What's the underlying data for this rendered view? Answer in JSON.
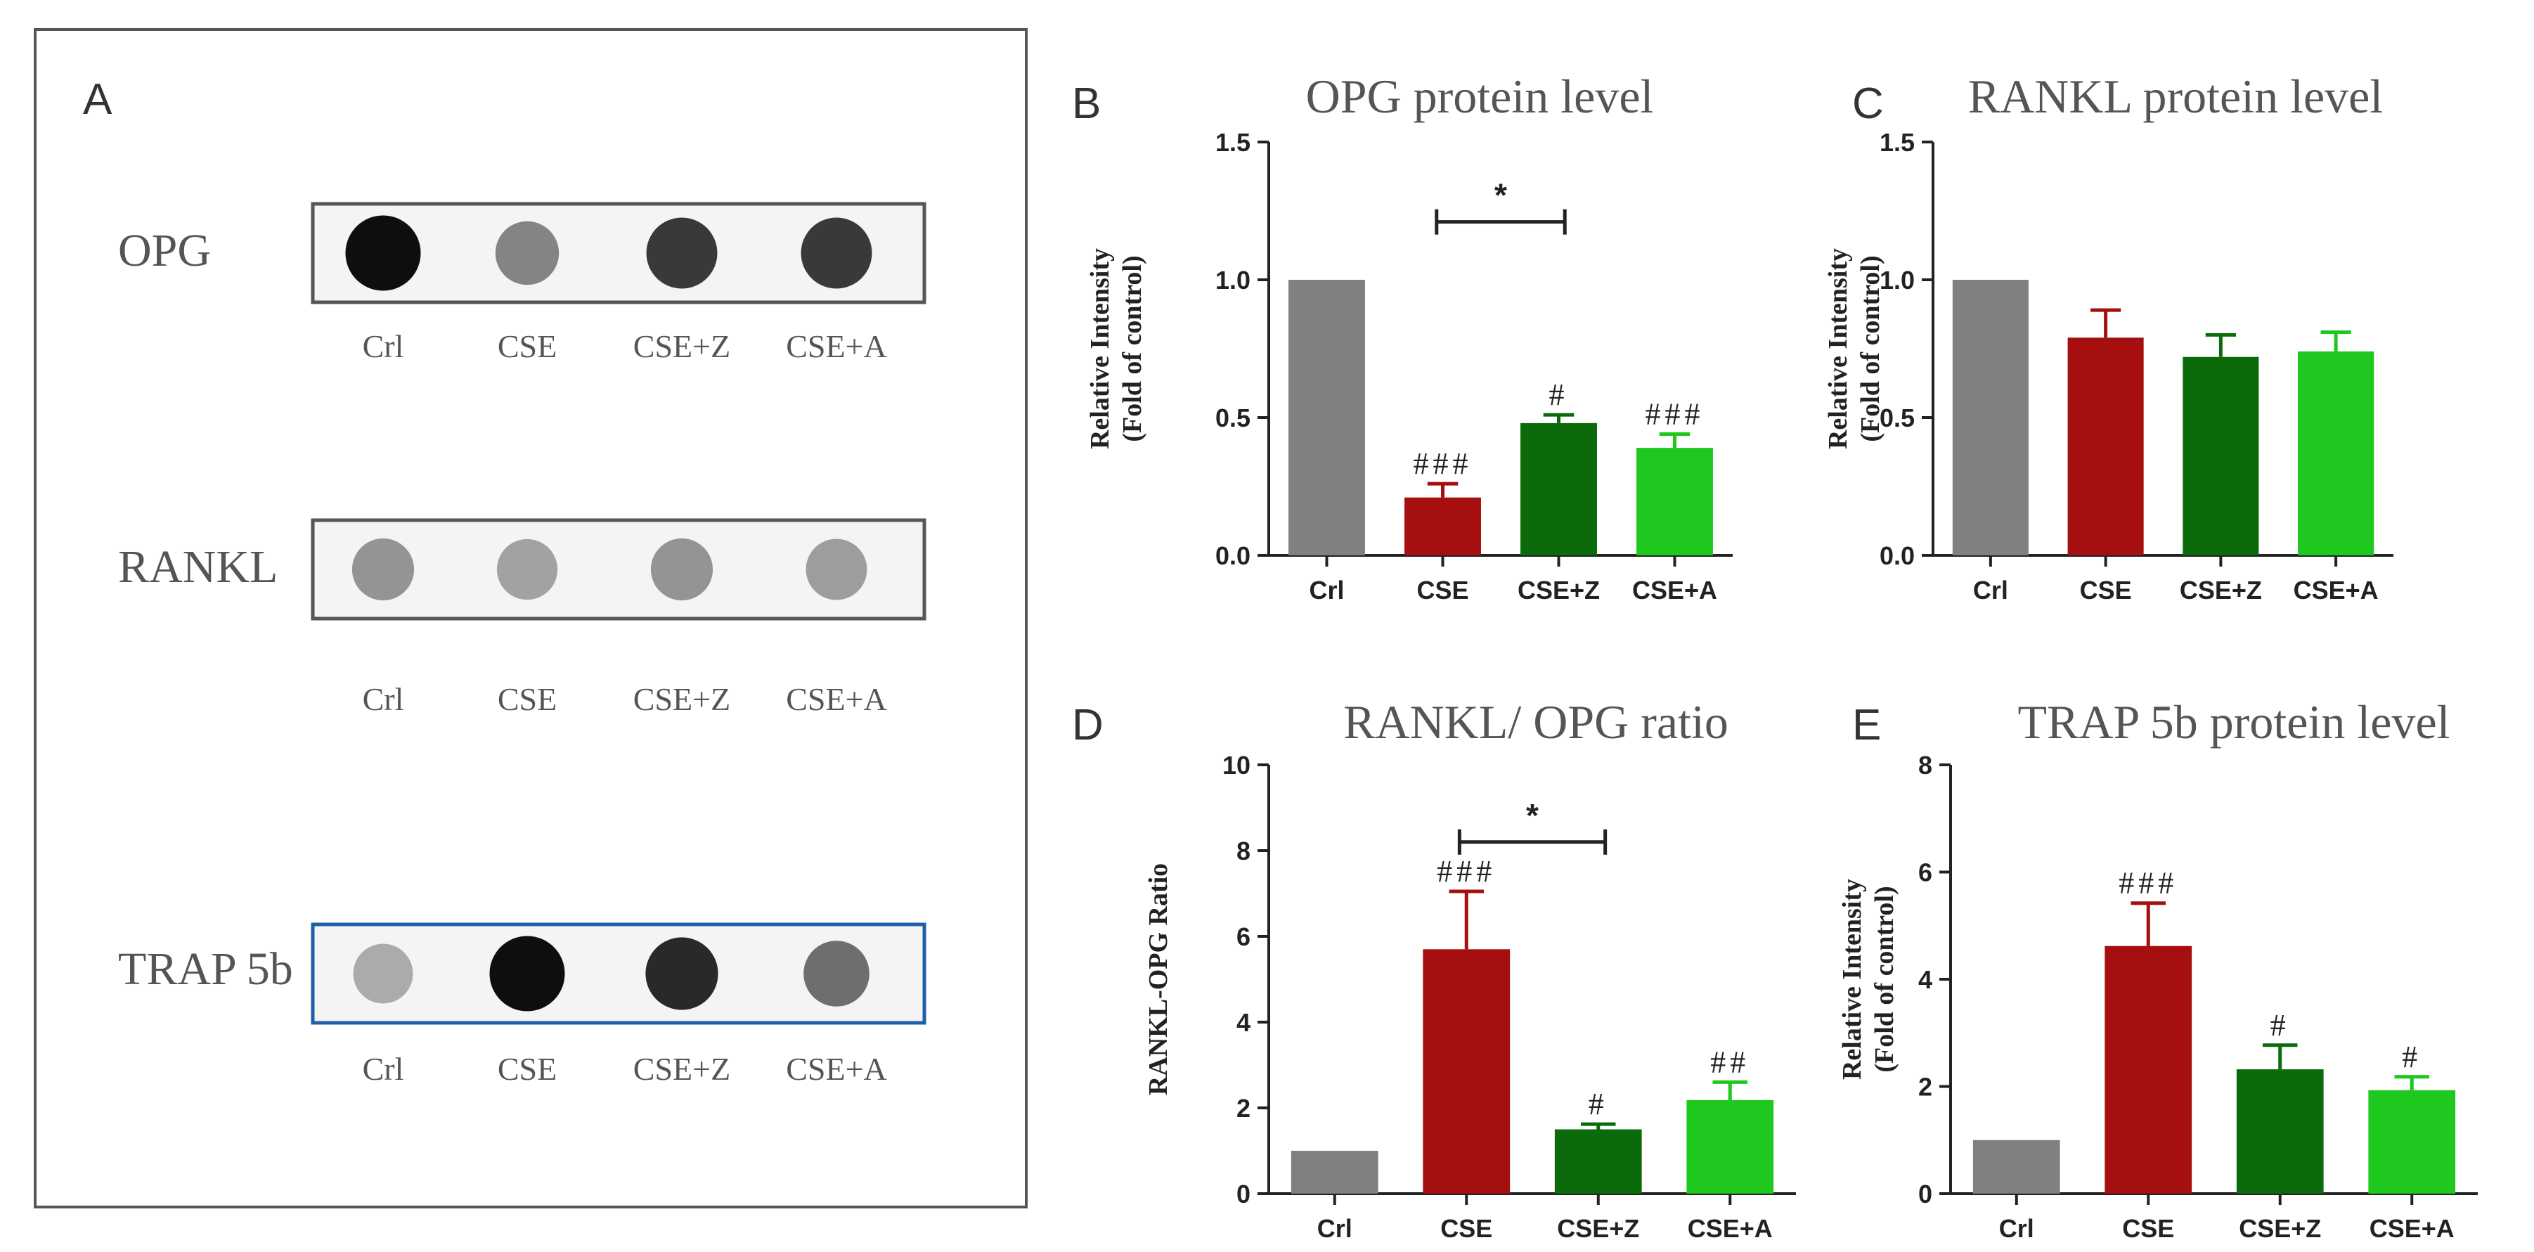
{
  "panel_a": {
    "letter": "A",
    "blots": [
      {
        "name": "OPG",
        "label": "OPG",
        "frame": "#555555",
        "spots": [
          0.97,
          0.45,
          0.78,
          0.78
        ]
      },
      {
        "name": "RANKL",
        "label": "RANKL",
        "frame": "#555555",
        "spots": [
          0.38,
          0.32,
          0.38,
          0.34
        ]
      },
      {
        "name": "TRAP 5b",
        "label": "TRAP 5b",
        "frame": "#1f5fa8",
        "spots": [
          0.28,
          0.97,
          0.85,
          0.55
        ]
      }
    ],
    "lane_labels": [
      "Crl",
      "CSE",
      "CSE+Z",
      "CSE+A"
    ]
  },
  "colors": {
    "Crl": "#808080",
    "CSE": "#a50f0f",
    "CSE+Z": "#0b6b0b",
    "CSE+A": "#1ec81e",
    "blot_frame": "#555555",
    "trap_frame": "#1f5fa8"
  },
  "chart_data": [
    {
      "id": "B",
      "letter": "B",
      "type": "bar",
      "title": "OPG protein level",
      "ylabel": [
        "Relative Intensity",
        "(Fold of control)"
      ],
      "categories": [
        "Crl",
        "CSE",
        "CSE+Z",
        "CSE+A"
      ],
      "values": [
        1.0,
        0.21,
        0.48,
        0.39
      ],
      "errors": [
        0,
        0.05,
        0.03,
        0.05
      ],
      "annotations": [
        "",
        "###",
        "#",
        "###"
      ],
      "ylim": [
        0,
        1.5
      ],
      "yticks": [
        0.0,
        0.5,
        1.0,
        1.5
      ],
      "tick_labels": [
        "0.0",
        "0.5",
        "1.0",
        "1.5"
      ],
      "comparison": {
        "from": 1,
        "to": 2,
        "y": 1.21,
        "label": "*"
      }
    },
    {
      "id": "C",
      "letter": "C",
      "type": "bar",
      "title": "RANKL protein level",
      "ylabel": [
        "Relative Intensity",
        "(Fold of control)"
      ],
      "categories": [
        "Crl",
        "CSE",
        "CSE+Z",
        "CSE+A"
      ],
      "values": [
        1.0,
        0.79,
        0.72,
        0.74
      ],
      "errors": [
        0,
        0.1,
        0.08,
        0.07
      ],
      "annotations": [
        "",
        "",
        "",
        ""
      ],
      "ylim": [
        0,
        1.5
      ],
      "yticks": [
        0.0,
        0.5,
        1.0,
        1.5
      ],
      "tick_labels": [
        "0.0",
        "0.5",
        "1.0",
        "1.5"
      ]
    },
    {
      "id": "D",
      "letter": "D",
      "type": "bar",
      "title": "RANKL/ OPG ratio",
      "ylabel": [
        "RANKL-OPG Ratio"
      ],
      "categories": [
        "Crl",
        "CSE",
        "CSE+Z",
        "CSE+A"
      ],
      "values": [
        1.0,
        5.7,
        1.5,
        2.18
      ],
      "errors": [
        0,
        1.35,
        0.12,
        0.42
      ],
      "annotations": [
        "",
        "###",
        "#",
        "##"
      ],
      "ylim": [
        0,
        10
      ],
      "yticks": [
        0,
        2,
        4,
        6,
        8,
        10
      ],
      "tick_labels": [
        "0",
        "2",
        "4",
        "6",
        "8",
        "10"
      ],
      "comparison": {
        "from": 1,
        "to": 2,
        "y": 8.2,
        "label": "*"
      }
    },
    {
      "id": "E",
      "letter": "E",
      "type": "bar",
      "title": "TRAP 5b protein level",
      "ylabel": [
        "Relative Intensity",
        "(Fold of control)"
      ],
      "categories": [
        "Crl",
        "CSE",
        "CSE+Z",
        "CSE+A"
      ],
      "values": [
        1.0,
        4.62,
        2.32,
        1.93
      ],
      "errors": [
        0,
        0.8,
        0.45,
        0.25
      ],
      "annotations": [
        "",
        "###",
        "#",
        "#"
      ],
      "ylim": [
        0,
        8
      ],
      "yticks": [
        0,
        2,
        4,
        6,
        8
      ],
      "tick_labels": [
        "0",
        "2",
        "4",
        "6",
        "8"
      ]
    }
  ]
}
